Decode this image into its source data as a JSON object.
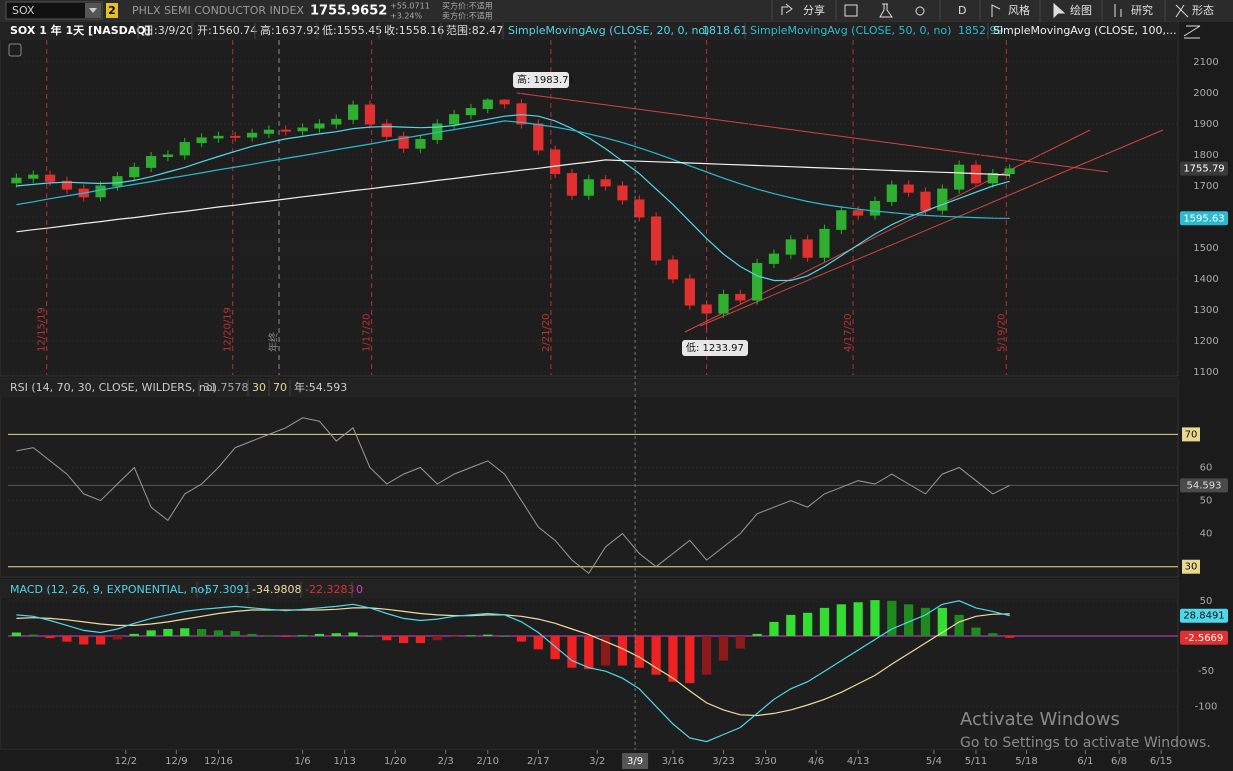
{
  "toolbar": {
    "symbol": "SOX",
    "link": "2",
    "description": "PHLX SEMI CONDUCTOR INDEX",
    "last": "1755.9652",
    "change": "+55.0711",
    "change_pct": "+3.24%",
    "bid": "买方价:不适用",
    "ask": "卖方价:不适用",
    "buttons": [
      "分享",
      "D",
      "风格",
      "绘图",
      "研究",
      "形态"
    ]
  },
  "chart_data": [
    {
      "type": "candlestick",
      "title": "SOX 1 年 1天 [NASDAQ]",
      "readouts": [
        "日:3/9/20",
        "开:1560.74",
        "高:1637.92",
        "低:1555.45",
        "收:1558.16",
        "范围:82.47"
      ],
      "x": [
        1,
        3,
        5,
        7,
        9,
        11,
        13,
        15,
        17,
        19,
        21,
        23,
        25,
        27,
        29,
        31,
        33,
        35,
        37,
        39,
        41,
        43,
        45,
        47,
        49,
        51,
        53,
        55,
        57,
        59,
        61,
        63,
        65,
        67,
        69,
        71,
        73,
        75,
        77,
        79,
        81,
        83,
        85,
        87,
        89,
        91,
        93,
        95,
        97,
        99,
        101,
        103,
        105,
        107,
        109,
        111,
        113,
        115,
        117,
        119
      ],
      "open": [
        1710,
        1725,
        1735,
        1715,
        1690,
        1665,
        1700,
        1730,
        1760,
        1795,
        1800,
        1840,
        1855,
        1860,
        1858,
        1870,
        1880,
        1878,
        1887,
        1900,
        1915,
        1961,
        1900,
        1860,
        1822,
        1850,
        1900,
        1930,
        1950,
        1977,
        1965,
        1900,
        1816,
        1740,
        1670,
        1720,
        1700,
        1655,
        1600,
        1461,
        1400,
        1316,
        1290,
        1350,
        1332,
        1450,
        1480,
        1526,
        1470,
        1560,
        1620,
        1606,
        1650,
        1703,
        1680,
        1622,
        1690,
        1767,
        1710,
        1740
      ],
      "high": [
        1740,
        1750,
        1750,
        1730,
        1705,
        1715,
        1745,
        1775,
        1810,
        1815,
        1855,
        1870,
        1875,
        1875,
        1885,
        1895,
        1895,
        1902,
        1915,
        1930,
        1976,
        1976,
        1915,
        1875,
        1865,
        1915,
        1945,
        1965,
        1983.71,
        1980,
        1980,
        1915,
        1831,
        1755,
        1735,
        1735,
        1715,
        1670,
        1615,
        1476,
        1415,
        1331,
        1365,
        1365,
        1465,
        1495,
        1541,
        1541,
        1575,
        1635,
        1635,
        1665,
        1718,
        1718,
        1695,
        1705,
        1782,
        1782,
        1755,
        1770
      ],
      "low": [
        1695,
        1710,
        1700,
        1675,
        1650,
        1650,
        1685,
        1715,
        1745,
        1780,
        1785,
        1825,
        1840,
        1843,
        1843,
        1855,
        1863,
        1863,
        1872,
        1885,
        1900,
        1885,
        1845,
        1807,
        1807,
        1835,
        1885,
        1915,
        1935,
        1950,
        1885,
        1801,
        1725,
        1655,
        1655,
        1685,
        1640,
        1585,
        1446,
        1385,
        1301,
        1233.97,
        1275,
        1317,
        1317,
        1435,
        1465,
        1455,
        1455,
        1545,
        1591,
        1591,
        1635,
        1665,
        1607,
        1607,
        1675,
        1695,
        1695,
        1725
      ],
      "close": [
        1725,
        1735,
        1715,
        1690,
        1665,
        1700,
        1730,
        1760,
        1795,
        1800,
        1840,
        1855,
        1860,
        1858,
        1870,
        1880,
        1878,
        1887,
        1900,
        1915,
        1961,
        1900,
        1860,
        1822,
        1850,
        1900,
        1930,
        1950,
        1977,
        1965,
        1900,
        1816,
        1740,
        1670,
        1720,
        1700,
        1655,
        1600,
        1461,
        1400,
        1316,
        1290,
        1350,
        1332,
        1450,
        1480,
        1526,
        1470,
        1560,
        1620,
        1606,
        1650,
        1703,
        1680,
        1622,
        1690,
        1767,
        1710,
        1740,
        1755
      ],
      "up_color": "#2fae2f",
      "down_color": "#e03030",
      "series": [
        {
          "name": "SimpleMovingAvg (CLOSE, 20, 0, no)",
          "readout": "1818.61",
          "color": "#53d6ea",
          "values": [
            1700,
            1705,
            1710,
            1712,
            1710,
            1708,
            1710,
            1718,
            1730,
            1745,
            1760,
            1778,
            1795,
            1812,
            1828,
            1840,
            1852,
            1860,
            1868,
            1875,
            1885,
            1890,
            1892,
            1890,
            1888,
            1890,
            1895,
            1905,
            1915,
            1925,
            1930,
            1925,
            1910,
            1885,
            1855,
            1820,
            1780,
            1740,
            1690,
            1640,
            1585,
            1530,
            1480,
            1440,
            1410,
            1395,
            1395,
            1410,
            1440,
            1475,
            1510,
            1545,
            1575,
            1600,
            1620,
            1640,
            1660,
            1680,
            1700,
            1715
          ]
        },
        {
          "name": "SimpleMovingAvg (CLOSE, 50, 0, no)",
          "readout": "1852.99",
          "color": "#2bbbd0",
          "values": [
            1640,
            1649,
            1659,
            1668,
            1677,
            1687,
            1696,
            1705,
            1714,
            1724,
            1733,
            1742,
            1752,
            1761,
            1770,
            1780,
            1789,
            1798,
            1807,
            1817,
            1826,
            1835,
            1845,
            1854,
            1863,
            1873,
            1882,
            1891,
            1900,
            1910,
            1905,
            1898,
            1890,
            1880,
            1868,
            1855,
            1840,
            1823,
            1805,
            1785,
            1765,
            1745,
            1725,
            1707,
            1690,
            1675,
            1662,
            1650,
            1640,
            1632,
            1625,
            1619,
            1614,
            1609,
            1605,
            1602,
            1600,
            1598,
            1596,
            1595.63
          ]
        },
        {
          "name": "SimpleMovingAvg (CLOSE, 100,...",
          "color": "#f0f0f0",
          "values": [
            1552,
            1559,
            1565,
            1572,
            1579,
            1585,
            1592,
            1598,
            1605,
            1612,
            1618,
            1625,
            1632,
            1638,
            1645,
            1651,
            1658,
            1665,
            1671,
            1678,
            1685,
            1691,
            1698,
            1704,
            1711,
            1718,
            1724,
            1731,
            1738,
            1744,
            1751,
            1757,
            1764,
            1771,
            1777,
            1784,
            1782,
            1780,
            1778,
            1776,
            1774,
            1772,
            1770,
            1768,
            1766,
            1764,
            1762,
            1760,
            1758,
            1756,
            1754,
            1752,
            1750,
            1748,
            1746,
            1744,
            1742,
            1740,
            1738,
            1735
          ]
        }
      ],
      "ylim": [
        1090,
        2171
      ],
      "yticks": [
        1100,
        1200,
        1300,
        1400,
        1500,
        1600,
        1700,
        1800,
        1900,
        2000,
        2100
      ],
      "xlim": [
        0,
        139
      ],
      "xticks": [
        {
          "value": 14,
          "label": "12/2"
        },
        {
          "value": 20,
          "label": "12/9"
        },
        {
          "value": 25,
          "label": "12/16"
        },
        {
          "value": 35,
          "label": "1/6"
        },
        {
          "value": 40,
          "label": "1/13"
        },
        {
          "value": 46,
          "label": "1/20"
        },
        {
          "value": 52,
          "label": "2/3"
        },
        {
          "value": 57,
          "label": "2/10"
        },
        {
          "value": 63,
          "label": "2/17"
        },
        {
          "value": 70,
          "label": "3/2"
        },
        {
          "value": 79,
          "label": "3/16"
        },
        {
          "value": 85,
          "label": "3/23"
        },
        {
          "value": 90,
          "label": "3/30"
        },
        {
          "value": 96,
          "label": "4/6"
        },
        {
          "value": 101,
          "label": "4/13"
        },
        {
          "value": 110,
          "label": "5/4"
        },
        {
          "value": 115,
          "label": "5/11"
        },
        {
          "value": 121,
          "label": "5/18"
        },
        {
          "value": 128,
          "label": "6/1"
        },
        {
          "value": 132,
          "label": "6/8"
        },
        {
          "value": 137,
          "label": "6/15"
        }
      ],
      "cursor": {
        "value": 74.5,
        "label": "3/9"
      },
      "price_labels": [
        {
          "value": 1755.79,
          "label": "1755.79",
          "color": "#3a3a3a"
        },
        {
          "value": 1595.63,
          "label": "1595.63",
          "color": "#2bbbd0"
        }
      ],
      "annotations": [
        "高: 1983.71",
        "低: 1233.97"
      ],
      "markers": [
        {
          "value": 4.6,
          "label": "12/15/19",
          "color": "#b83232"
        },
        {
          "value": 26.7,
          "label": "12/20/19",
          "color": "#b83232"
        },
        {
          "value": 32.2,
          "label": "年终",
          "color": "#8a8a8a"
        },
        {
          "value": 43.2,
          "label": "1/17/20",
          "color": "#b83232"
        },
        {
          "value": 64.5,
          "label": "2/21/20",
          "color": "#b83232"
        },
        {
          "value": 83,
          "color": "#b83232"
        },
        {
          "value": 100.4,
          "label": "4/17/20",
          "color": "#b83232"
        },
        {
          "value": 118.6,
          "label": "5/19/20",
          "color": "#b83232"
        }
      ]
    },
    {
      "type": "line",
      "title": "RSI (14, 70, 30, CLOSE, WILDERS, no)",
      "readouts": [
        "31.7578",
        "30",
        "70",
        "年:54.593"
      ],
      "color": "#9a9a9a",
      "values": [
        65,
        66,
        62,
        58,
        52,
        50,
        55,
        60,
        48,
        44,
        52,
        55,
        60,
        66,
        68,
        70,
        72,
        75,
        74,
        68,
        72,
        60,
        55,
        58,
        60,
        55,
        58,
        60,
        62,
        58,
        50,
        42,
        38,
        32,
        28,
        36,
        40,
        34,
        30,
        34,
        38,
        32,
        36,
        40,
        46,
        48,
        50,
        48,
        52,
        54,
        56,
        55,
        58,
        55,
        52,
        58,
        60,
        56,
        52,
        54.593
      ],
      "ylim": [
        27.5,
        81.3
      ],
      "yticks": [
        40,
        50,
        60
      ],
      "levels": [
        70,
        30
      ],
      "level_color": "#e8d890",
      "last_label": {
        "value": 54.593,
        "label": "54.593"
      }
    },
    {
      "type": "macd",
      "title": "MACD (12, 26, 9, EXPONENTIAL, no)",
      "readouts": [
        "-57.3091",
        "-34.9808",
        "-22.3283",
        "0"
      ],
      "value_line": {
        "color": "#4fd8ea",
        "values": [
          30,
          28,
          22,
          15,
          8,
          5,
          10,
          18,
          25,
          30,
          35,
          38,
          40,
          42,
          40,
          38,
          36,
          38,
          40,
          42,
          45,
          40,
          32,
          25,
          22,
          24,
          28,
          30,
          32,
          30,
          20,
          5,
          -15,
          -35,
          -45,
          -50,
          -60,
          -75,
          -100,
          -125,
          -145,
          -150,
          -140,
          -130,
          -110,
          -90,
          -75,
          -65,
          -50,
          -35,
          -20,
          -5,
          10,
          20,
          30,
          45,
          50,
          40,
          35,
          28.8491
        ]
      },
      "avg_line": {
        "color": "#f0dca0",
        "values": [
          25,
          26,
          25,
          23,
          20,
          17,
          15,
          15,
          17,
          20,
          24,
          28,
          32,
          35,
          37,
          37,
          37,
          37,
          37,
          38,
          40,
          40,
          38,
          35,
          32,
          30,
          29,
          29,
          30,
          30,
          28,
          24,
          18,
          10,
          2,
          -8,
          -18,
          -30,
          -45,
          -60,
          -78,
          -95,
          -105,
          -112,
          -113,
          -110,
          -105,
          -98,
          -90,
          -80,
          -68,
          -56,
          -40,
          -25,
          -10,
          5,
          20,
          28,
          31,
          31.416
        ]
      },
      "diff": {
        "values": [
          5,
          2,
          -3,
          -8,
          -12,
          -12,
          -5,
          3,
          8,
          10,
          11,
          10,
          8,
          7,
          3,
          1,
          -1,
          1,
          3,
          4,
          5,
          0,
          -6,
          -10,
          -10,
          -6,
          -1,
          1,
          2,
          0,
          -8,
          -19,
          -33,
          -45,
          -47,
          -42,
          -42,
          -45,
          -55,
          -65,
          -67,
          -55,
          -35,
          -18,
          3,
          20,
          30,
          33,
          40,
          45,
          48,
          51,
          50,
          45,
          40,
          40,
          30,
          12,
          4,
          -2.5669
        ]
      },
      "zero_line": 0,
      "zero_color": "#d040d0",
      "ylim": [
        -162,
        54
      ],
      "yticks": [
        50,
        -50,
        -100
      ],
      "last_labels": [
        {
          "value": 28.8491,
          "label": "28.8491",
          "color": "#4fd8ea"
        },
        {
          "value": -2.5669,
          "label": "-2.5669",
          "color": "#e03030"
        }
      ]
    }
  ],
  "watermark": {
    "title": "Activate Windows",
    "text": "Go to Settings to activate Windows."
  }
}
